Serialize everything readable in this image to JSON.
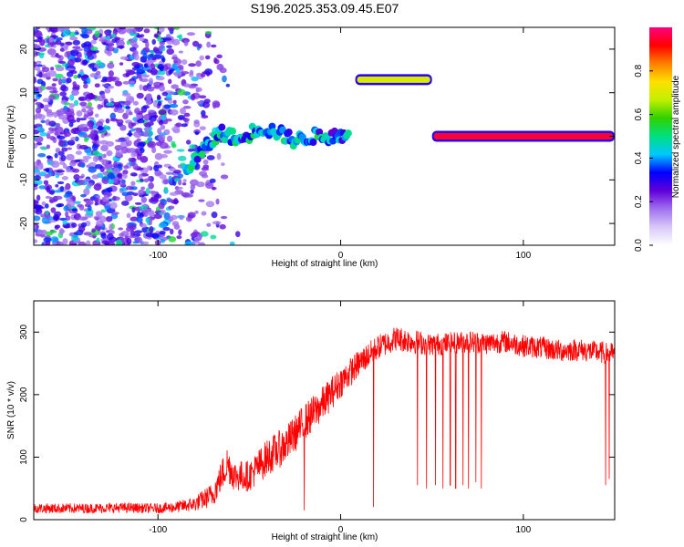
{
  "title": "S196.2025.353.09.45.E07",
  "chart_data": [
    {
      "type": "heatmap",
      "title": "S196.2025.353.09.45.E07",
      "xlabel": "Height of straight line (km)",
      "ylabel": "Frequency (Hz)",
      "xlim": [
        -168,
        150
      ],
      "ylim": [
        -25,
        25
      ],
      "xticks": [
        -100,
        0,
        100
      ],
      "yticks": [
        -20,
        -10,
        0,
        10,
        20
      ],
      "colorbar": {
        "label": "Normalized spectral amplitude",
        "range": [
          0,
          1
        ],
        "ticks": [
          0.0,
          0.2,
          0.4,
          0.6,
          0.8
        ],
        "tick_labels": [
          "0.0",
          "0.2",
          "0.4",
          "0.6",
          "0.8"
        ],
        "colors": [
          "#ffffff",
          "#d8c8f8",
          "#a070f0",
          "#6000d8",
          "#0000ff",
          "#00c8ff",
          "#00e080",
          "#30d000",
          "#c0f000",
          "#ffe000",
          "#ff8000",
          "#ff0000",
          "#ff0080"
        ]
      },
      "features": [
        {
          "name": "noise",
          "x": [
            -168,
            -55
          ],
          "y": [
            -25,
            25
          ],
          "amplitude": 0.15
        },
        {
          "name": "ridge",
          "points": [
            [
              -85,
              -8
            ],
            [
              -75,
              -3
            ],
            [
              -65,
              1
            ],
            [
              -55,
              -1
            ],
            [
              -45,
              2
            ],
            [
              -35,
              1
            ],
            [
              -25,
              -1
            ],
            [
              -15,
              0
            ],
            [
              -5,
              0
            ],
            [
              5,
              0
            ]
          ],
          "amplitude": 0.5
        },
        {
          "name": "band",
          "x": [
            8,
            50
          ],
          "y": 13,
          "amplitude": 0.7
        },
        {
          "name": "band",
          "x": [
            50,
            150
          ],
          "y": 0,
          "amplitude": 0.95
        }
      ]
    },
    {
      "type": "line",
      "xlabel": "Height of straight line (km)",
      "ylabel": "SNR (10 * v/v)",
      "xlim": [
        -168,
        150
      ],
      "ylim": [
        0,
        350
      ],
      "xticks": [
        -100,
        0,
        100
      ],
      "yticks": [
        0,
        100,
        200,
        300
      ],
      "color": "#ff0000",
      "series": [
        {
          "name": "SNR",
          "x": [
            -168,
            -140,
            -120,
            -100,
            -90,
            -80,
            -70,
            -62,
            -58,
            -50,
            -40,
            -30,
            -20,
            -10,
            0,
            10,
            20,
            30,
            40,
            50,
            60,
            70,
            80,
            90,
            100,
            110,
            120,
            130,
            140,
            150
          ],
          "y": [
            18,
            18,
            19,
            18,
            20,
            25,
            40,
            90,
            70,
            70,
            100,
            120,
            155,
            185,
            220,
            250,
            275,
            290,
            285,
            280,
            282,
            285,
            282,
            285,
            278,
            275,
            270,
            272,
            268,
            265
          ],
          "noise": [
            8,
            8,
            8,
            8,
            9,
            12,
            20,
            30,
            25,
            25,
            30,
            30,
            30,
            28,
            25,
            22,
            20,
            20,
            20,
            18,
            18,
            18,
            18,
            18,
            18,
            18,
            18,
            18,
            18,
            18
          ]
        }
      ],
      "dropouts": [
        [
          18,
          20
        ],
        [
          -20,
          15
        ],
        [
          42,
          55
        ],
        [
          47,
          50
        ],
        [
          52,
          55
        ],
        [
          56,
          50
        ],
        [
          60,
          55
        ],
        [
          63,
          50
        ],
        [
          67,
          55
        ],
        [
          70,
          50
        ],
        [
          74,
          60
        ],
        [
          77,
          50
        ],
        [
          145,
          55
        ],
        [
          147,
          65
        ]
      ]
    }
  ]
}
